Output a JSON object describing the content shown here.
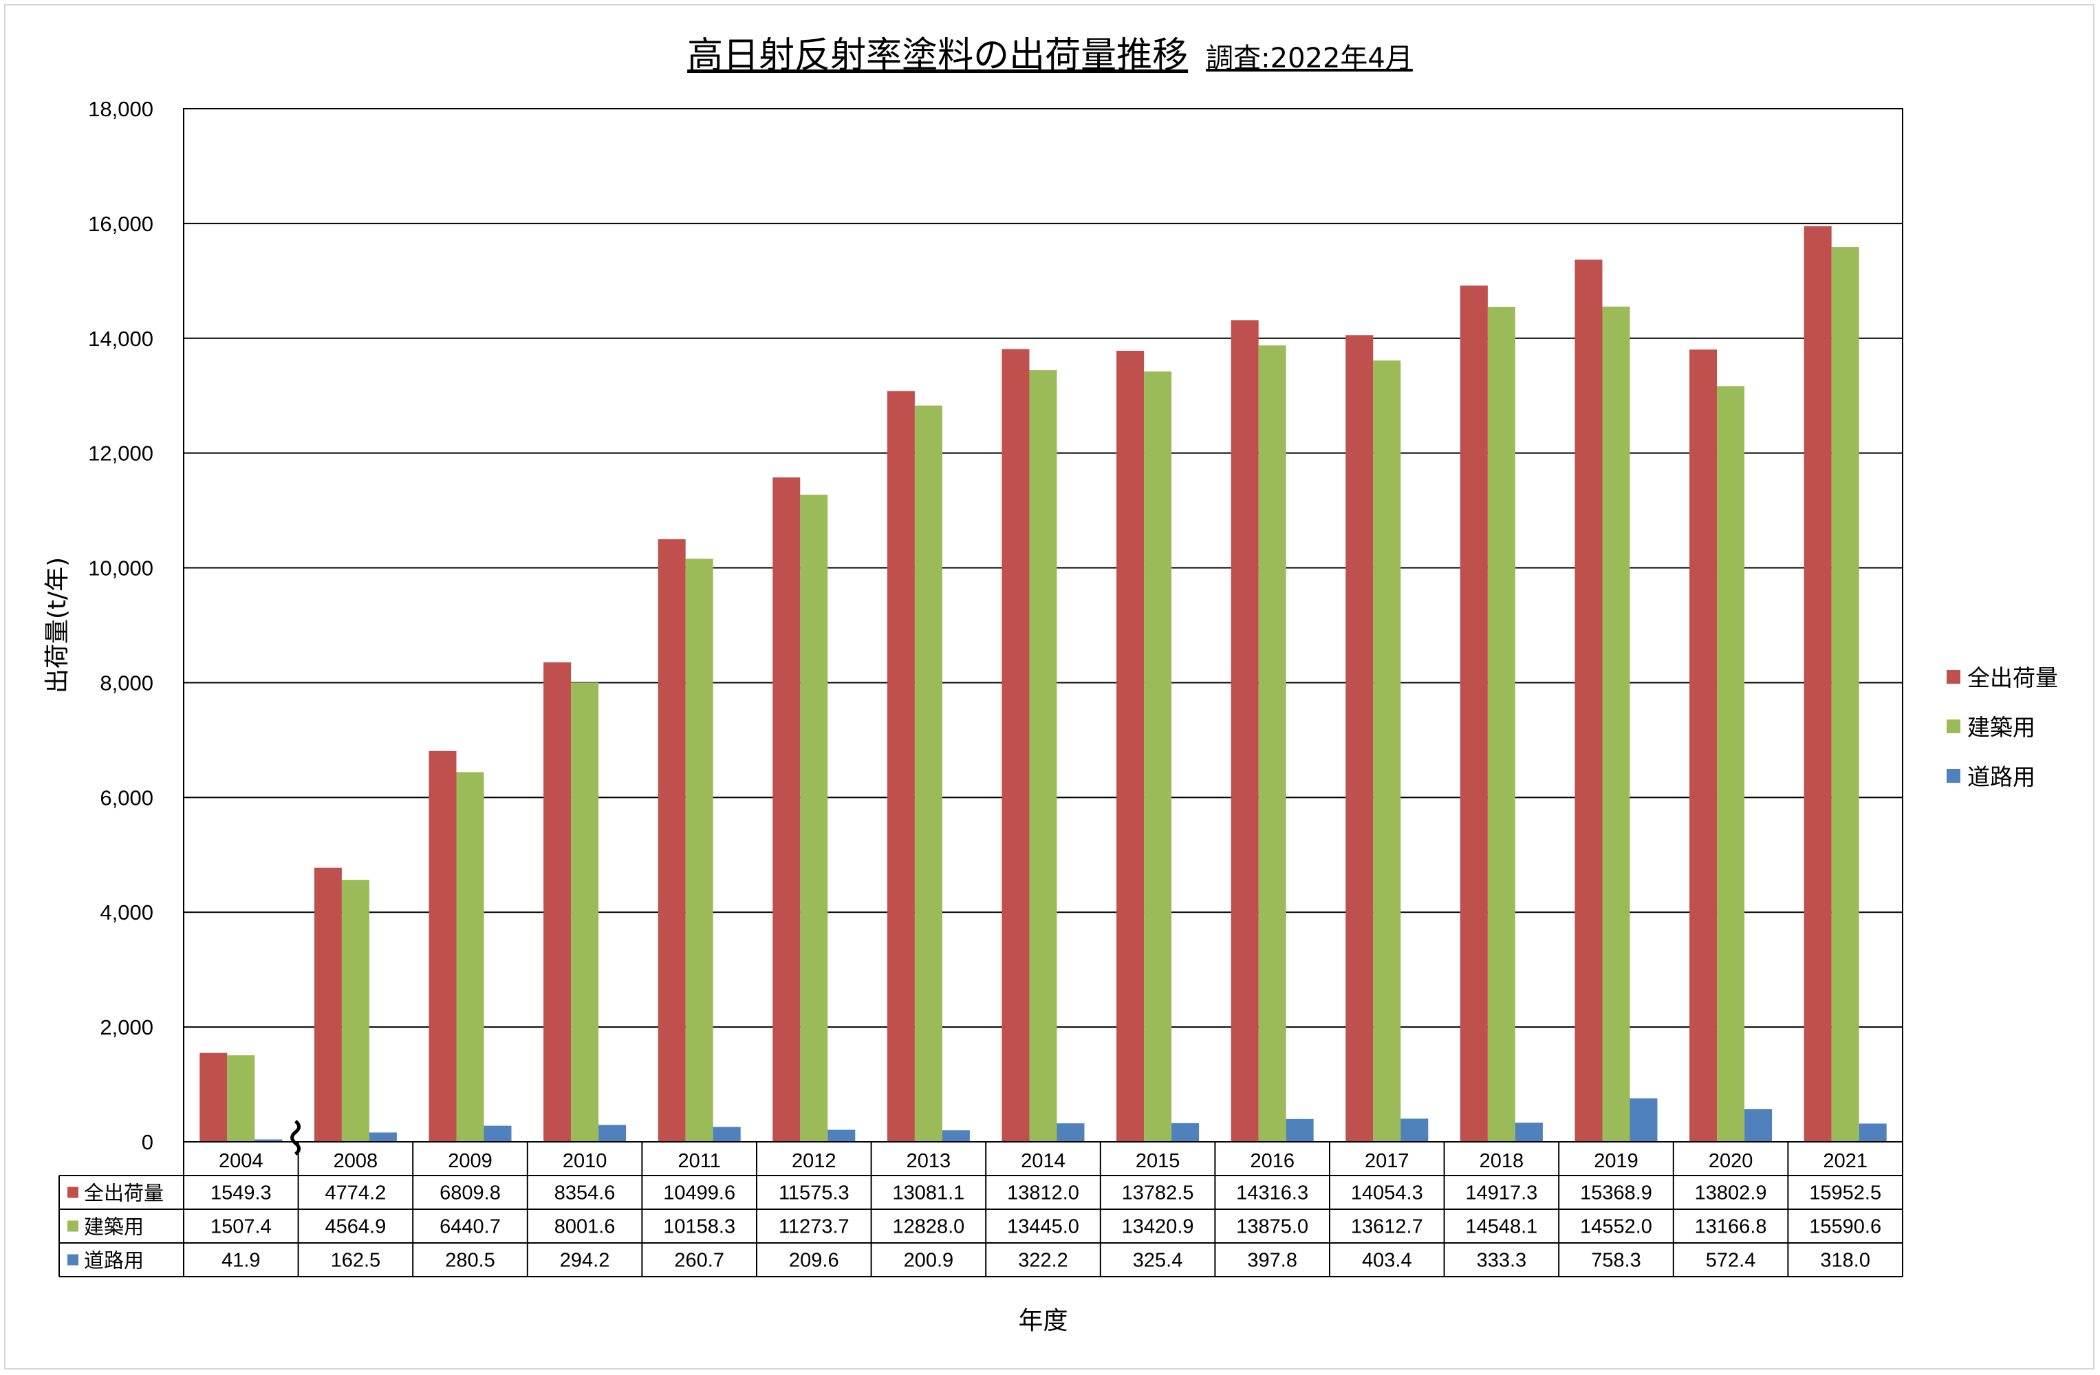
{
  "header": {
    "title": "高日射反射率塗料の出荷量推移",
    "survey_note": "調査:2022年4月"
  },
  "chart_data": {
    "type": "bar",
    "categories": [
      "2004",
      "2008",
      "2009",
      "2010",
      "2011",
      "2012",
      "2013",
      "2014",
      "2015",
      "2016",
      "2017",
      "2018",
      "2019",
      "2020",
      "2021"
    ],
    "series": [
      {
        "name": "全出荷量",
        "color": "#c0504d",
        "values": [
          1549.3,
          4774.2,
          6809.8,
          8354.6,
          10499.6,
          11575.3,
          13081.1,
          13812.0,
          13782.5,
          14316.3,
          14054.3,
          14917.3,
          15368.9,
          13802.9,
          15952.5
        ]
      },
      {
        "name": "建築用",
        "color": "#9bbb59",
        "values": [
          1507.4,
          4564.9,
          6440.7,
          8001.6,
          10158.3,
          11273.7,
          12828.0,
          13445.0,
          13420.9,
          13875.0,
          13612.7,
          14548.1,
          14552.0,
          13166.8,
          15590.6
        ]
      },
      {
        "name": "道路用",
        "color": "#4f81bd",
        "values": [
          41.9,
          162.5,
          280.5,
          294.2,
          260.7,
          209.6,
          200.9,
          322.2,
          325.4,
          397.8,
          403.4,
          333.3,
          758.3,
          572.4,
          318.0
        ]
      }
    ],
    "table_values": [
      [
        "1549.3",
        "4774.2",
        "6809.8",
        "8354.6",
        "10499.6",
        "11575.3",
        "13081.1",
        "13812.0",
        "13782.5",
        "14316.3",
        "14054.3",
        "14917.3",
        "15368.9",
        "13802.9",
        "15952.5"
      ],
      [
        "1507.4",
        "4564.9",
        "6440.7",
        "8001.6",
        "10158.3",
        "11273.7",
        "12828.0",
        "13445.0",
        "13420.9",
        "13875.0",
        "13612.7",
        "14548.1",
        "14552.0",
        "13166.8",
        "15590.6"
      ],
      [
        "41.9",
        "162.5",
        "280.5",
        "294.2",
        "260.7",
        "209.6",
        "200.9",
        "322.2",
        "325.4",
        "397.8",
        "403.4",
        "333.3",
        "758.3",
        "572.4",
        "318.0"
      ]
    ],
    "yticks": [
      "0",
      "2,000",
      "4,000",
      "6,000",
      "8,000",
      "10,000",
      "12,000",
      "14,000",
      "16,000",
      "18,000"
    ],
    "ylim": [
      0,
      18000
    ],
    "ylabel": "出荷量(t/年)",
    "xlabel": "年度",
    "grid": true,
    "legend_position": "right",
    "axis_break_after": "2004"
  }
}
